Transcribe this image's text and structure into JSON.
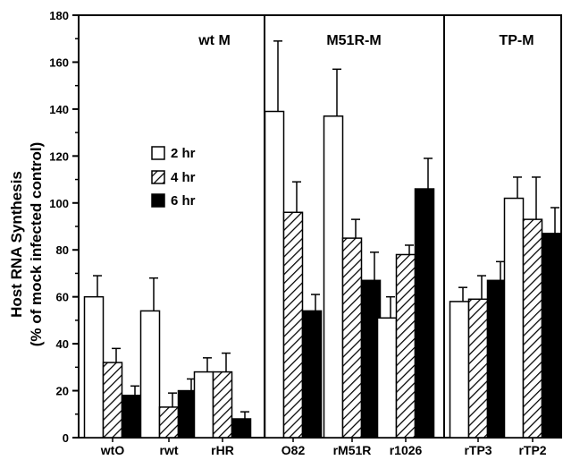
{
  "chart_data": {
    "type": "bar",
    "ylabel_line1": "Host RNA Synthesis",
    "ylabel_line2": "(% of mock infected control)",
    "ylim": [
      0,
      180
    ],
    "yticks": [
      0,
      20,
      40,
      60,
      80,
      100,
      120,
      140,
      160,
      180
    ],
    "categories": [
      "wtO",
      "rwt",
      "rHR",
      "O82",
      "rM51R",
      "r1026",
      "rTP3",
      "rTP2"
    ],
    "panels": [
      {
        "title": "wt M",
        "categories": [
          "wtO",
          "rwt",
          "rHR"
        ]
      },
      {
        "title": "M51R-M",
        "categories": [
          "O82",
          "rM51R",
          "r1026"
        ]
      },
      {
        "title": "TP-M",
        "categories": [
          "rTP3",
          "rTP2"
        ]
      }
    ],
    "series": [
      {
        "name": "2 hr",
        "fill": "open",
        "values": [
          60,
          54,
          28,
          139,
          137,
          51,
          58,
          102
        ],
        "errors": [
          9,
          14,
          6,
          30,
          20,
          9,
          6,
          9
        ]
      },
      {
        "name": "4 hr",
        "fill": "hatched",
        "values": [
          32,
          13,
          28,
          96,
          85,
          78,
          59,
          93
        ],
        "errors": [
          6,
          6,
          8,
          13,
          8,
          4,
          10,
          18
        ]
      },
      {
        "name": "6 hr",
        "fill": "solid",
        "values": [
          18,
          20,
          8,
          54,
          67,
          106,
          67,
          87
        ],
        "errors": [
          4,
          5,
          3,
          7,
          12,
          13,
          8,
          11
        ]
      }
    ],
    "legend": {
      "position": "inside-left"
    },
    "grid": false
  },
  "colors": {
    "axis": "#000000",
    "open_fill": "#ffffff",
    "solid_fill": "#000000"
  }
}
